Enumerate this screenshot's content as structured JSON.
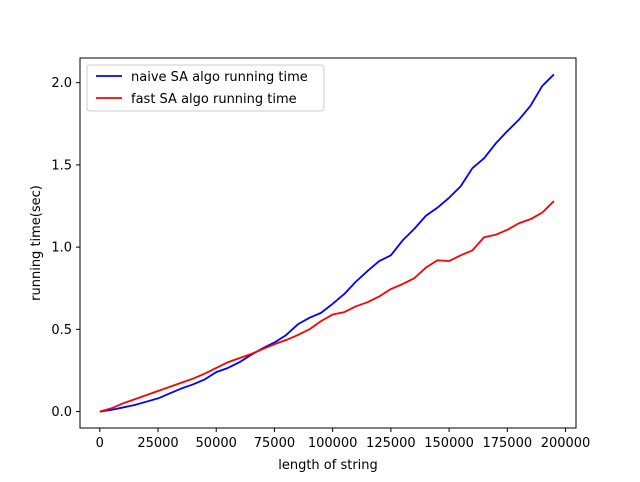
{
  "chart_data": {
    "type": "line",
    "title": "",
    "xlabel": "length of string",
    "ylabel": "running time(sec)",
    "xlim": [
      -8500,
      204500
    ],
    "ylim": [
      -0.1,
      2.15
    ],
    "xticks": [
      0,
      25000,
      50000,
      75000,
      100000,
      125000,
      150000,
      175000,
      200000
    ],
    "xtick_labels": [
      "0",
      "25000",
      "50000",
      "75000",
      "100000",
      "125000",
      "150000",
      "175000",
      "200000"
    ],
    "yticks": [
      0.0,
      0.5,
      1.0,
      1.5,
      2.0
    ],
    "ytick_labels": [
      "0.0",
      "0.5",
      "1.0",
      "1.5",
      "2.0"
    ],
    "grid": false,
    "legend_position": "top-left",
    "series": [
      {
        "name": "naive SA algo running time",
        "color": "#0000ff",
        "x": [
          0,
          5000,
          10000,
          15000,
          20000,
          25000,
          30000,
          35000,
          40000,
          45000,
          50000,
          55000,
          60000,
          65000,
          70000,
          75000,
          80000,
          85000,
          90000,
          95000,
          100000,
          105000,
          110000,
          115000,
          120000,
          125000,
          130000,
          135000,
          140000,
          145000,
          150000,
          155000,
          160000,
          165000,
          170000,
          175000,
          180000,
          185000,
          190000,
          195000
        ],
        "y": [
          0.0,
          0.01,
          0.025,
          0.04,
          0.06,
          0.08,
          0.11,
          0.14,
          0.165,
          0.195,
          0.24,
          0.265,
          0.3,
          0.345,
          0.385,
          0.42,
          0.465,
          0.53,
          0.57,
          0.6,
          0.655,
          0.715,
          0.79,
          0.855,
          0.915,
          0.95,
          1.04,
          1.11,
          1.19,
          1.24,
          1.3,
          1.37,
          1.48,
          1.54,
          1.63,
          1.705,
          1.775,
          1.86,
          1.98,
          2.05
        ]
      },
      {
        "name": "fast SA algo running time",
        "color": "#ff0000",
        "x": [
          0,
          5000,
          10000,
          15000,
          20000,
          25000,
          30000,
          35000,
          40000,
          45000,
          50000,
          55000,
          60000,
          65000,
          70000,
          75000,
          80000,
          85000,
          90000,
          95000,
          100000,
          105000,
          110000,
          115000,
          120000,
          125000,
          130000,
          135000,
          140000,
          145000,
          150000,
          155000,
          160000,
          165000,
          170000,
          175000,
          180000,
          185000,
          190000,
          195000
        ],
        "y": [
          0.0,
          0.02,
          0.05,
          0.075,
          0.1,
          0.125,
          0.15,
          0.175,
          0.2,
          0.23,
          0.265,
          0.3,
          0.325,
          0.35,
          0.38,
          0.41,
          0.435,
          0.465,
          0.5,
          0.55,
          0.59,
          0.605,
          0.64,
          0.665,
          0.7,
          0.745,
          0.775,
          0.81,
          0.875,
          0.92,
          0.915,
          0.95,
          0.98,
          1.06,
          1.075,
          1.105,
          1.145,
          1.17,
          1.21,
          1.28
        ]
      }
    ]
  }
}
